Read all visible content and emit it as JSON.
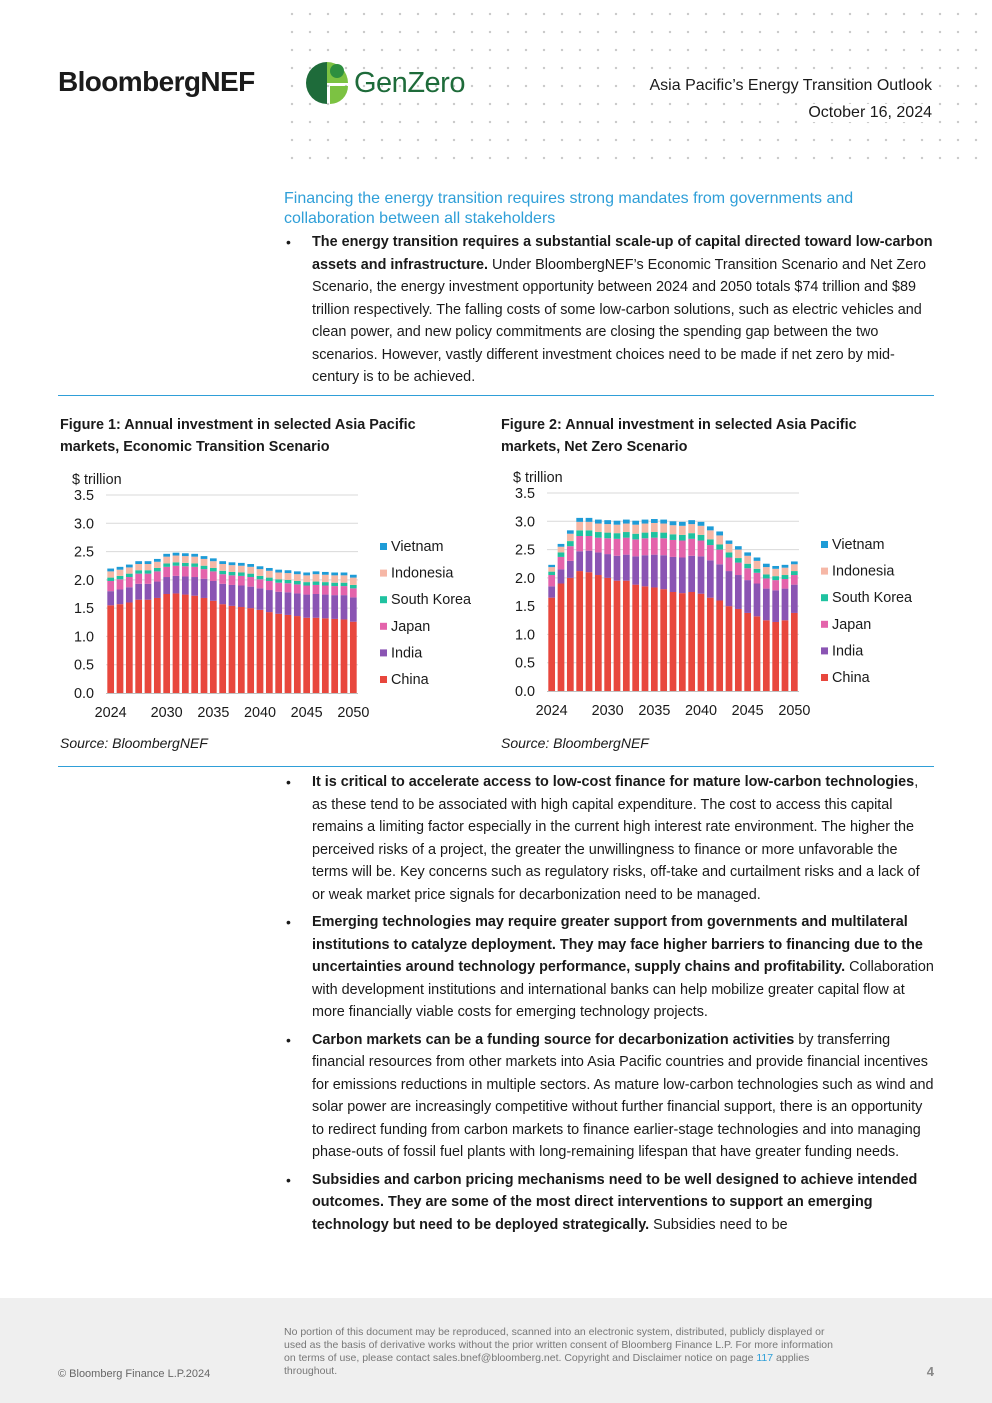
{
  "header": {
    "brand": "BloombergNEF",
    "partner": "GenZero",
    "report_title": "Asia Pacific’s Energy Transition Outlook",
    "date": "October 16, 2024"
  },
  "section_heading": "Financing the energy transition requires strong mandates from governments and collaboration between all stakeholders",
  "bullets_top": [
    {
      "bold": "The energy transition requires a substantial scale-up of capital directed toward low-carbon assets and infrastructure.",
      "text": " Under BloombergNEF’s Economic Transition Scenario and Net Zero Scenario, the energy investment opportunity between 2024 and 2050 totals $74 trillion and $89 trillion respectively. The falling costs of some low-carbon solutions, such as electric vehicles and clean power, and new policy commitments are closing the spending gap between the two scenarios. However, vastly different investment choices need to be made if net zero by mid-century is to be achieved."
    }
  ],
  "figures": [
    {
      "title": "Figure 1:  Annual investment in selected Asia Pacific markets, Economic Transition Scenario",
      "source": "Source: BloombergNEF"
    },
    {
      "title": "Figure 2:  Annual investment in selected Asia Pacific markets, Net Zero Scenario",
      "source": "Source: BloombergNEF"
    }
  ],
  "chart_data": [
    {
      "type": "bar",
      "stacked": true,
      "ylabel": "$ trillion",
      "ylim": [
        0,
        3.5
      ],
      "yticks": [
        "0.0",
        "0.5",
        "1.0",
        "1.5",
        "2.0",
        "2.5",
        "3.0",
        "3.5"
      ],
      "x": [
        2024,
        2025,
        2026,
        2027,
        2028,
        2029,
        2030,
        2031,
        2032,
        2033,
        2034,
        2035,
        2036,
        2037,
        2038,
        2039,
        2040,
        2041,
        2042,
        2043,
        2044,
        2045,
        2046,
        2047,
        2048,
        2049,
        2050
      ],
      "xtick_labels": [
        "2024",
        "2030",
        "2035",
        "2040",
        "2045",
        "2050"
      ],
      "legend_position": "right",
      "series": [
        {
          "name": "China",
          "color": "#e8473d",
          "values": [
            1.55,
            1.57,
            1.6,
            1.65,
            1.65,
            1.68,
            1.75,
            1.76,
            1.74,
            1.72,
            1.68,
            1.63,
            1.57,
            1.54,
            1.52,
            1.5,
            1.47,
            1.43,
            1.4,
            1.38,
            1.36,
            1.33,
            1.33,
            1.32,
            1.31,
            1.3,
            1.26
          ]
        },
        {
          "name": "India",
          "color": "#8a54b3",
          "values": [
            0.25,
            0.26,
            0.27,
            0.28,
            0.28,
            0.29,
            0.3,
            0.31,
            0.32,
            0.33,
            0.34,
            0.35,
            0.36,
            0.37,
            0.38,
            0.38,
            0.38,
            0.39,
            0.39,
            0.4,
            0.4,
            0.41,
            0.42,
            0.42,
            0.42,
            0.43,
            0.43
          ]
        },
        {
          "name": "Japan",
          "color": "#e463ab",
          "values": [
            0.18,
            0.18,
            0.18,
            0.18,
            0.18,
            0.18,
            0.18,
            0.18,
            0.18,
            0.18,
            0.17,
            0.17,
            0.17,
            0.17,
            0.17,
            0.17,
            0.16,
            0.16,
            0.16,
            0.16,
            0.16,
            0.16,
            0.16,
            0.16,
            0.16,
            0.16,
            0.16
          ]
        },
        {
          "name": "South Korea",
          "color": "#1fc2a0",
          "values": [
            0.06,
            0.06,
            0.06,
            0.06,
            0.06,
            0.06,
            0.06,
            0.06,
            0.06,
            0.06,
            0.06,
            0.06,
            0.06,
            0.06,
            0.06,
            0.06,
            0.06,
            0.06,
            0.06,
            0.06,
            0.06,
            0.06,
            0.06,
            0.06,
            0.06,
            0.06,
            0.06
          ]
        },
        {
          "name": "Indonesia",
          "color": "#f6b7a6",
          "values": [
            0.11,
            0.11,
            0.11,
            0.11,
            0.11,
            0.11,
            0.12,
            0.12,
            0.12,
            0.12,
            0.12,
            0.12,
            0.12,
            0.12,
            0.12,
            0.12,
            0.12,
            0.12,
            0.12,
            0.12,
            0.12,
            0.12,
            0.13,
            0.13,
            0.13,
            0.13,
            0.13
          ]
        },
        {
          "name": "Vietnam",
          "color": "#1e9cd7",
          "values": [
            0.05,
            0.05,
            0.05,
            0.05,
            0.05,
            0.05,
            0.05,
            0.05,
            0.05,
            0.05,
            0.05,
            0.05,
            0.05,
            0.05,
            0.05,
            0.05,
            0.05,
            0.05,
            0.05,
            0.05,
            0.05,
            0.05,
            0.05,
            0.05,
            0.05,
            0.05,
            0.05
          ]
        }
      ]
    },
    {
      "type": "bar",
      "stacked": true,
      "ylabel": "$ trillion",
      "ylim": [
        0,
        3.5
      ],
      "yticks": [
        "0.0",
        "0.5",
        "1.0",
        "1.5",
        "2.0",
        "2.5",
        "3.0",
        "3.5"
      ],
      "x": [
        2024,
        2025,
        2026,
        2027,
        2028,
        2029,
        2030,
        2031,
        2032,
        2033,
        2034,
        2035,
        2036,
        2037,
        2038,
        2039,
        2040,
        2041,
        2042,
        2043,
        2044,
        2045,
        2046,
        2047,
        2048,
        2049,
        2050
      ],
      "xtick_labels": [
        "2024",
        "2030",
        "2035",
        "2040",
        "2045",
        "2050"
      ],
      "legend_position": "right",
      "series": [
        {
          "name": "China",
          "color": "#e8473d",
          "values": [
            1.65,
            1.9,
            2.0,
            2.12,
            2.1,
            2.05,
            2.0,
            1.95,
            1.95,
            1.88,
            1.85,
            1.83,
            1.8,
            1.75,
            1.73,
            1.75,
            1.72,
            1.65,
            1.6,
            1.5,
            1.45,
            1.38,
            1.32,
            1.25,
            1.22,
            1.25,
            1.38
          ]
        },
        {
          "name": "India",
          "color": "#8a54b3",
          "values": [
            0.2,
            0.25,
            0.3,
            0.35,
            0.38,
            0.4,
            0.42,
            0.44,
            0.46,
            0.5,
            0.55,
            0.58,
            0.6,
            0.62,
            0.63,
            0.64,
            0.66,
            0.66,
            0.64,
            0.62,
            0.6,
            0.58,
            0.58,
            0.56,
            0.56,
            0.56,
            0.5
          ]
        },
        {
          "name": "Japan",
          "color": "#e463ab",
          "values": [
            0.2,
            0.22,
            0.26,
            0.27,
            0.26,
            0.26,
            0.28,
            0.3,
            0.3,
            0.3,
            0.3,
            0.3,
            0.3,
            0.3,
            0.3,
            0.3,
            0.28,
            0.27,
            0.26,
            0.24,
            0.22,
            0.21,
            0.19,
            0.18,
            0.18,
            0.17,
            0.17
          ]
        },
        {
          "name": "South Korea",
          "color": "#1fc2a0",
          "values": [
            0.06,
            0.08,
            0.09,
            0.1,
            0.1,
            0.1,
            0.1,
            0.1,
            0.1,
            0.1,
            0.1,
            0.1,
            0.1,
            0.1,
            0.1,
            0.1,
            0.1,
            0.1,
            0.09,
            0.09,
            0.08,
            0.08,
            0.07,
            0.07,
            0.07,
            0.07,
            0.07
          ]
        },
        {
          "name": "Indonesia",
          "color": "#f6b7a6",
          "values": [
            0.08,
            0.1,
            0.13,
            0.15,
            0.15,
            0.15,
            0.15,
            0.15,
            0.15,
            0.16,
            0.16,
            0.16,
            0.16,
            0.16,
            0.16,
            0.16,
            0.16,
            0.16,
            0.16,
            0.15,
            0.15,
            0.14,
            0.14,
            0.13,
            0.13,
            0.13,
            0.12
          ]
        },
        {
          "name": "Vietnam",
          "color": "#1e9cd7",
          "values": [
            0.04,
            0.05,
            0.06,
            0.07,
            0.07,
            0.07,
            0.07,
            0.07,
            0.07,
            0.07,
            0.07,
            0.07,
            0.07,
            0.07,
            0.07,
            0.07,
            0.07,
            0.07,
            0.07,
            0.06,
            0.06,
            0.06,
            0.06,
            0.06,
            0.05,
            0.05,
            0.05
          ]
        }
      ]
    }
  ],
  "bullets_bottom": [
    {
      "bold": "It is critical to accelerate access to low-cost finance for mature low-carbon technologies",
      "text": ", as these tend to be associated with high capital expenditure. The cost to access this capital remains a limiting factor especially in the current high interest rate environment. The higher the perceived risks of a project, the greater the unwillingness to finance or more unfavorable the terms will be. Key concerns such as regulatory risks, off-take and curtailment risks and a lack of or weak market price signals for decarbonization need to be managed."
    },
    {
      "bold": "Emerging technologies may require greater support from governments and multilateral institutions to catalyze deployment. They may face higher barriers to financing due to the uncertainties around technology performance, supply chains and profitability.",
      "text": " Collaboration with development institutions and international banks can help mobilize greater capital flow at more financially viable costs for emerging technology projects."
    },
    {
      "bold": "Carbon markets can be a funding source for decarbonization activities",
      "text": " by transferring financial resources from other markets into Asia Pacific countries and provide financial incentives for emissions reductions in multiple sectors. As mature low-carbon technologies such as wind and solar power are increasingly competitive without further financial support, there is an opportunity to redirect funding from carbon markets to finance earlier-stage technologies and into managing phase-outs of fossil fuel plants with long-remaining lifespan that have greater funding needs."
    },
    {
      "bold": "Subsidies and carbon pricing mechanisms need to be well designed to achieve intended outcomes. They are some of the most direct interventions to support an emerging technology but need to be deployed strategically.",
      "text": " Subsidies need to be"
    }
  ],
  "footer": {
    "copyright": "© Bloomberg Finance L.P.2024",
    "disclaimer_pre": "No portion of this document may be reproduced, scanned into an electronic system, distributed, publicly displayed or used as the basis of derivative works without the prior written consent of Bloomberg Finance L.P.  For more information on terms of use, please contact sales.bnef@bloomberg.net. Copyright and Disclaimer notice on page ",
    "disclaimer_link": "117",
    "disclaimer_post": " applies throughout.",
    "page_number": "4"
  },
  "colors": {
    "accent": "#2f9fd8",
    "genzero_green": "#1e6b3a",
    "genzero_lime": "#7cc242"
  }
}
